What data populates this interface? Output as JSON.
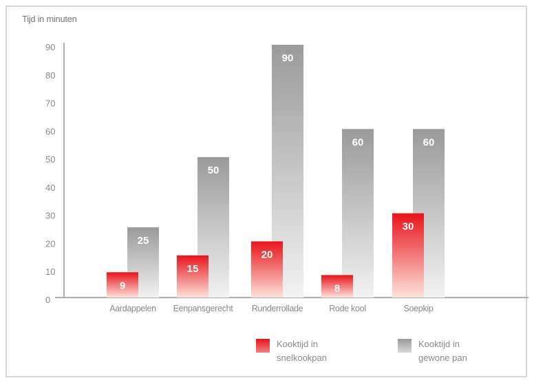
{
  "chart_data": {
    "type": "bar",
    "ylabel": "Tijd in minuten",
    "ylim": [
      0,
      90
    ],
    "yticks": [
      0,
      10,
      20,
      30,
      40,
      50,
      60,
      70,
      80,
      90
    ],
    "categories": [
      "Aardappelen",
      "Eenpansgerecht",
      "Runderrollade",
      "Rode kool",
      "Soepkip"
    ],
    "series": [
      {
        "name": "Kooktijd in snelkookpan",
        "values": [
          9,
          15,
          20,
          8,
          30
        ],
        "color": "#e8141c"
      },
      {
        "name": "Kooktijd in gewone pan",
        "values": [
          25,
          50,
          90,
          60,
          60
        ],
        "color": "#9a9a9a"
      }
    ],
    "grid": false,
    "legend_position": "bottom",
    "data_labels": true
  }
}
